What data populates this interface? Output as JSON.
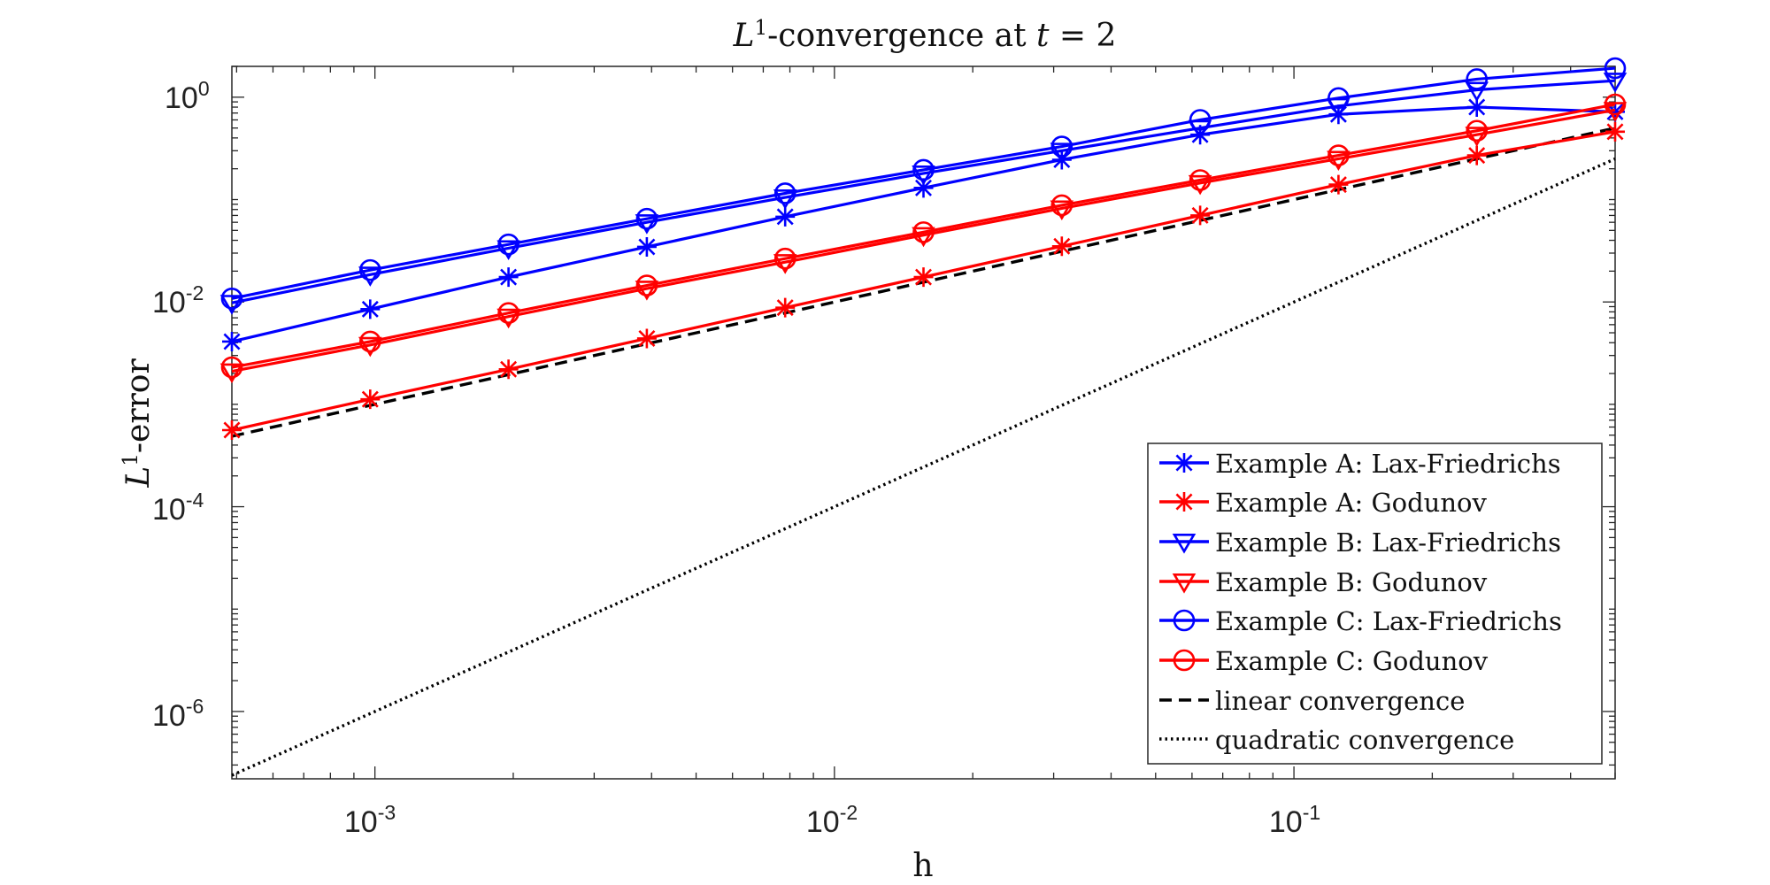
{
  "chart_data": {
    "type": "line",
    "title": {
      "prefix": "L",
      "sup": "1",
      "middle": "-convergence at ",
      "var": "t",
      "suffix": " = 2"
    },
    "xlabel": "h",
    "ylabel": {
      "prefix": "L",
      "sup": "1",
      "suffix": "-error"
    },
    "xscale": "log",
    "yscale": "log",
    "xlim": [
      0.00048828125,
      0.5
    ],
    "ylim": [
      2.2e-07,
      2.0
    ],
    "xticks": [
      {
        "value": 0.001,
        "base": "10",
        "exp": "-3"
      },
      {
        "value": 0.01,
        "base": "10",
        "exp": "-2"
      },
      {
        "value": 0.1,
        "base": "10",
        "exp": "-1"
      }
    ],
    "yticks": [
      {
        "value": 1e-06,
        "base": "10",
        "exp": "-6"
      },
      {
        "value": 0.0001,
        "base": "10",
        "exp": "-4"
      },
      {
        "value": 0.01,
        "base": "10",
        "exp": "-2"
      },
      {
        "value": 1,
        "base": "10",
        "exp": "0"
      }
    ],
    "grid": false,
    "legend_position": "bottom-right",
    "x": [
      0.00048828125,
      0.0009765625,
      0.001953125,
      0.00390625,
      0.0078125,
      0.015625,
      0.03125,
      0.0625,
      0.125,
      0.25,
      0.5
    ],
    "series": [
      {
        "name": "Example A: Lax-Friedrichs",
        "color": "#0000ff",
        "marker": "asterisk",
        "dash": "solid",
        "values": [
          0.0041,
          0.0085,
          0.0175,
          0.0345,
          0.068,
          0.13,
          0.245,
          0.43,
          0.68,
          0.8,
          0.72
        ]
      },
      {
        "name": "Example A: Godunov",
        "color": "#ff0000",
        "marker": "asterisk",
        "dash": "solid",
        "values": [
          0.00056,
          0.00112,
          0.0022,
          0.0044,
          0.0088,
          0.0175,
          0.035,
          0.07,
          0.14,
          0.27,
          0.46
        ]
      },
      {
        "name": "Example B: Lax-Friedrichs",
        "color": "#0000ff",
        "marker": "triangle-down",
        "dash": "solid",
        "values": [
          0.0098,
          0.0185,
          0.0335,
          0.06,
          0.105,
          0.18,
          0.3,
          0.5,
          0.82,
          1.18,
          1.45
        ]
      },
      {
        "name": "Example B: Godunov",
        "color": "#ff0000",
        "marker": "triangle-down",
        "dash": "solid",
        "values": [
          0.0021,
          0.0038,
          0.0072,
          0.0135,
          0.0245,
          0.045,
          0.082,
          0.145,
          0.25,
          0.43,
          0.75
        ]
      },
      {
        "name": "Example C: Lax-Friedrichs",
        "color": "#0000ff",
        "marker": "circle",
        "dash": "solid",
        "values": [
          0.0108,
          0.0205,
          0.0365,
          0.065,
          0.115,
          0.195,
          0.33,
          0.6,
          0.98,
          1.5,
          1.92
        ]
      },
      {
        "name": "Example C: Godunov",
        "color": "#ff0000",
        "marker": "circle",
        "dash": "solid",
        "values": [
          0.0023,
          0.0041,
          0.0078,
          0.0145,
          0.0265,
          0.048,
          0.088,
          0.155,
          0.27,
          0.47,
          0.85
        ]
      },
      {
        "name": "linear convergence",
        "color": "#000000",
        "marker": "none",
        "dash": "dashed",
        "values": [
          0.000488,
          0.000977,
          0.00195,
          0.0039,
          0.0078,
          0.0156,
          0.03125,
          0.0625,
          0.125,
          0.25,
          0.5
        ]
      },
      {
        "name": "quadratic convergence",
        "color": "#000000",
        "marker": "none",
        "dash": "dotted",
        "values": [
          2.38e-07,
          9.54e-07,
          3.81e-06,
          1.53e-05,
          6.1e-05,
          0.000244,
          0.000977,
          0.0039,
          0.0156,
          0.0625,
          0.25
        ]
      }
    ]
  }
}
